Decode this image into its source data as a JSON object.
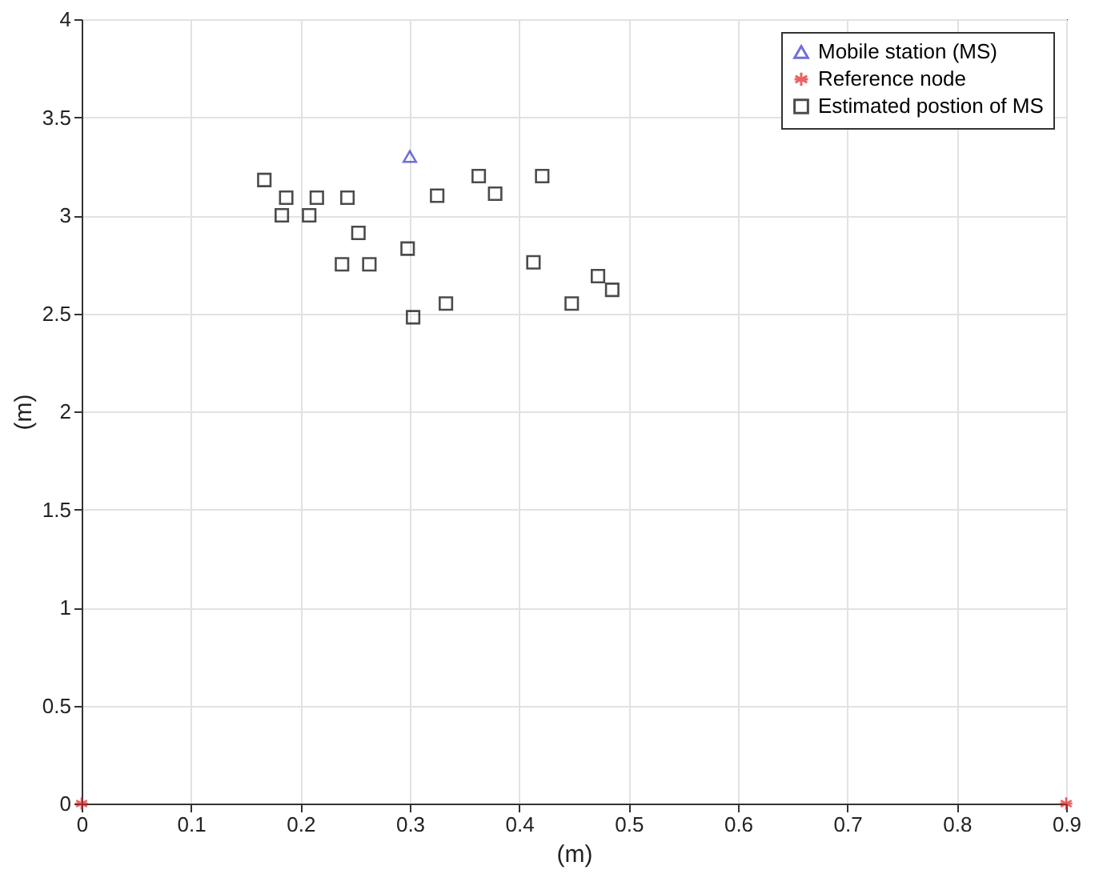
{
  "chart_data": {
    "type": "scatter",
    "xlabel": "(m)",
    "ylabel": "(m)",
    "xlim": [
      0,
      0.9
    ],
    "ylim": [
      0,
      4
    ],
    "xticks": [
      0,
      0.1,
      0.2,
      0.3,
      0.4,
      0.5,
      0.6,
      0.7,
      0.8,
      0.9
    ],
    "yticks": [
      0,
      0.5,
      1,
      1.5,
      2,
      2.5,
      3,
      3.5,
      4
    ],
    "grid": true,
    "legend": "top right",
    "series": [
      {
        "name": "Mobile station (MS)",
        "color": "#3333cc",
        "marker": "triangle",
        "x": [
          0.3
        ],
        "values": [
          3.3
        ]
      },
      {
        "name": "Reference node",
        "color": "#e02020",
        "marker": "cross",
        "x": [
          0,
          0.9
        ],
        "values": [
          0,
          0
        ]
      },
      {
        "name": "Estimated postion of MS",
        "color": "#000000",
        "marker": "square",
        "x": [
          0.167,
          0.187,
          0.183,
          0.208,
          0.215,
          0.243,
          0.253,
          0.238,
          0.263,
          0.298,
          0.303,
          0.333,
          0.325,
          0.363,
          0.378,
          0.421,
          0.413,
          0.448,
          0.472,
          0.485
        ],
        "values": [
          3.18,
          3.09,
          3.0,
          3.0,
          3.09,
          3.09,
          2.91,
          2.75,
          2.75,
          2.83,
          2.48,
          2.55,
          3.1,
          3.2,
          3.11,
          3.2,
          2.76,
          2.55,
          2.69,
          2.62
        ]
      }
    ]
  }
}
